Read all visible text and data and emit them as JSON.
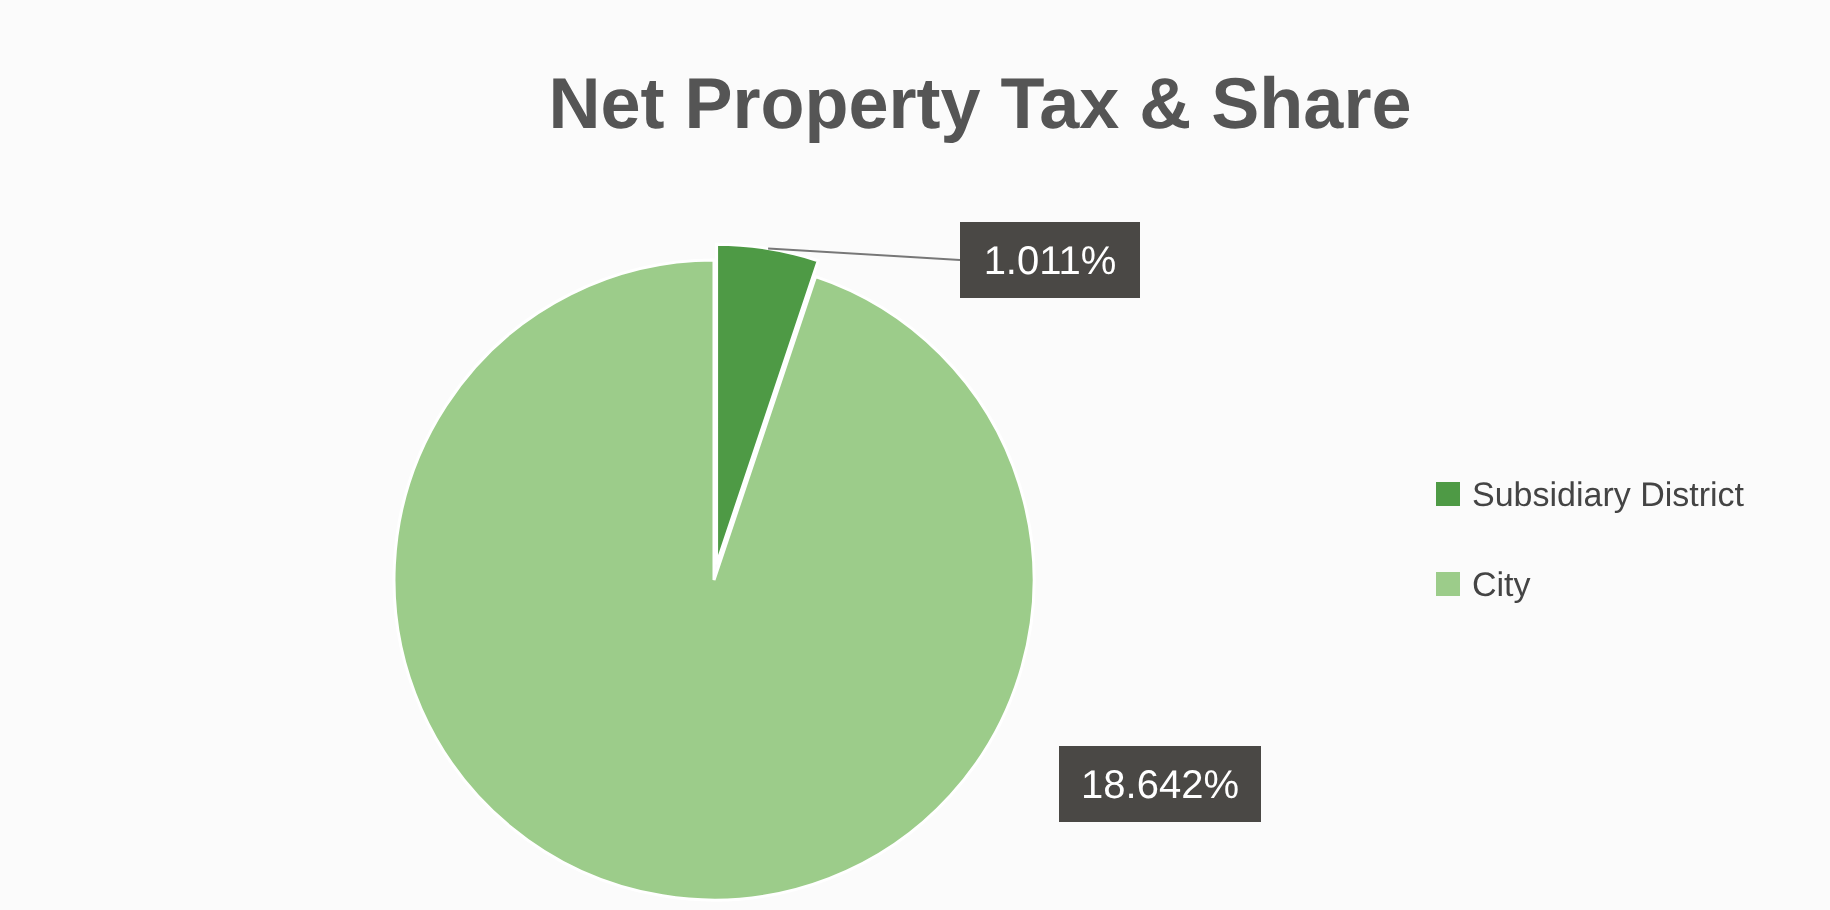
{
  "chart_data": {
    "type": "pie",
    "title": "Net Property Tax & Share",
    "categories": [
      "Subsidiary District",
      "City"
    ],
    "values": [
      1.011,
      18.642
    ],
    "value_labels": [
      "1.011%",
      "18.642%"
    ],
    "colors": [
      "#4e9a45",
      "#9ccc8a"
    ],
    "legend": "right"
  }
}
